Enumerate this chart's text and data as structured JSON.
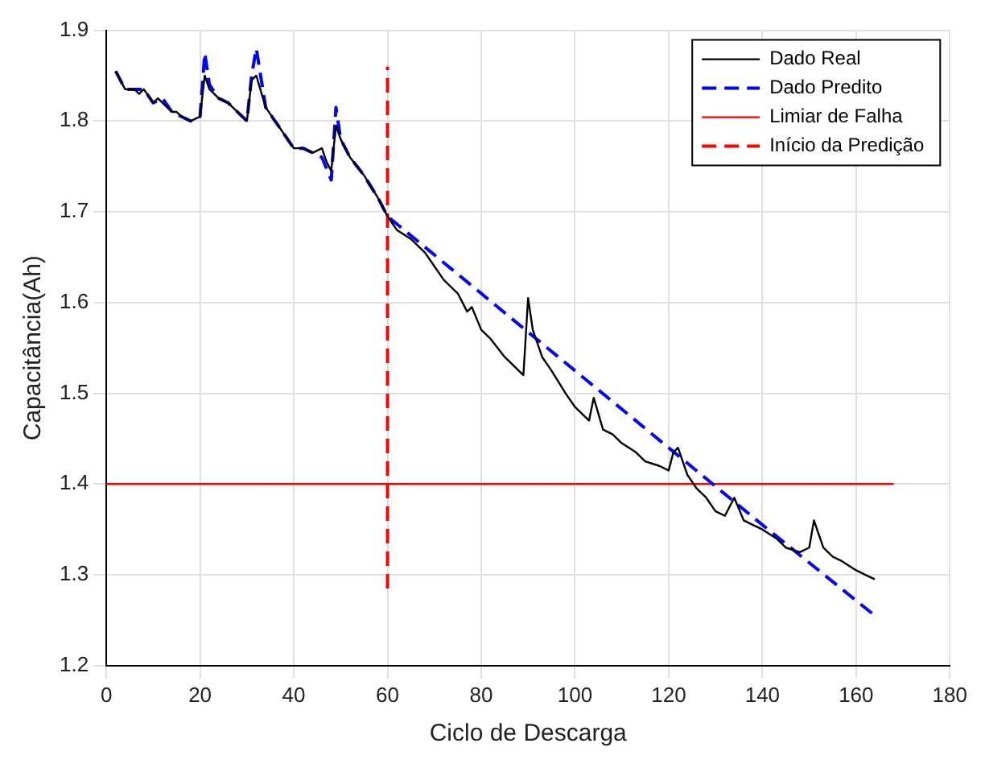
{
  "chart_data": {
    "type": "line",
    "xlabel": "Ciclo de Descarga",
    "ylabel": "Capacitância(Ah)",
    "xlim": [
      0,
      180
    ],
    "xticks": [
      0,
      20,
      40,
      60,
      80,
      100,
      120,
      140,
      160,
      180
    ],
    "ylim": [
      1.2,
      1.9
    ],
    "yticks": [
      1.2,
      1.3,
      1.4,
      1.5,
      1.6,
      1.7,
      1.8,
      1.9
    ],
    "grid": true,
    "legend": "top right",
    "series": [
      {
        "name": "Dado Real",
        "color": "#000000",
        "line_style": "solid",
        "x": [
          2,
          4,
          6,
          7,
          8,
          10,
          11,
          12,
          14,
          15,
          16,
          18,
          20,
          21,
          22,
          24,
          26,
          28,
          30,
          31,
          32,
          34,
          36,
          38,
          40,
          42,
          44,
          46,
          47,
          48,
          49,
          50,
          52,
          55,
          58,
          60,
          62,
          65,
          68,
          70,
          72,
          75,
          77,
          78,
          80,
          82,
          85,
          88,
          89,
          90,
          91,
          93,
          95,
          98,
          100,
          103,
          104,
          106,
          108,
          110,
          113,
          115,
          118,
          120,
          121,
          122,
          124,
          126,
          128,
          130,
          132,
          134,
          136,
          138,
          140,
          143,
          145,
          148,
          150,
          151,
          153,
          155,
          157,
          160,
          162,
          164
        ],
        "values": [
          1.855,
          1.835,
          1.835,
          1.83,
          1.835,
          1.82,
          1.825,
          1.82,
          1.81,
          1.81,
          1.805,
          1.8,
          1.805,
          1.85,
          1.835,
          1.825,
          1.82,
          1.81,
          1.8,
          1.845,
          1.85,
          1.815,
          1.8,
          1.785,
          1.77,
          1.77,
          1.765,
          1.77,
          1.755,
          1.745,
          1.795,
          1.78,
          1.76,
          1.74,
          1.715,
          1.695,
          1.68,
          1.67,
          1.655,
          1.64,
          1.625,
          1.61,
          1.59,
          1.595,
          1.57,
          1.56,
          1.54,
          1.525,
          1.52,
          1.605,
          1.57,
          1.54,
          1.525,
          1.5,
          1.485,
          1.47,
          1.495,
          1.46,
          1.455,
          1.445,
          1.435,
          1.425,
          1.42,
          1.415,
          1.435,
          1.44,
          1.41,
          1.395,
          1.385,
          1.37,
          1.365,
          1.385,
          1.36,
          1.355,
          1.35,
          1.34,
          1.33,
          1.325,
          1.33,
          1.36,
          1.33,
          1.32,
          1.315,
          1.305,
          1.3,
          1.295
        ]
      },
      {
        "name": "Dado Predito",
        "color": "#0000ff",
        "line_style": "dashed",
        "x": [
          2,
          4,
          6,
          8,
          10,
          12,
          14,
          16,
          18,
          20,
          21,
          22,
          24,
          26,
          28,
          30,
          31,
          32,
          34,
          36,
          38,
          40,
          42,
          44,
          46,
          48,
          49,
          50,
          52,
          55,
          58,
          60,
          80,
          100,
          120,
          140,
          164
        ],
        "values": [
          1.855,
          1.835,
          1.835,
          1.835,
          1.82,
          1.825,
          1.81,
          1.805,
          1.8,
          1.805,
          1.875,
          1.84,
          1.825,
          1.82,
          1.81,
          1.8,
          1.85,
          1.88,
          1.815,
          1.8,
          1.785,
          1.77,
          1.77,
          1.765,
          1.76,
          1.735,
          1.815,
          1.78,
          1.76,
          1.74,
          1.715,
          1.695,
          1.61,
          1.525,
          1.44,
          1.355,
          1.255
        ]
      },
      {
        "name": "Limiar de Falha",
        "color": "#ff0000",
        "line_style": "solid",
        "x": [
          0,
          168
        ],
        "values": [
          1.4,
          1.4
        ]
      },
      {
        "name": "Início da Predição",
        "color": "#ff0000",
        "line_style": "dashed",
        "x": [
          60,
          60
        ],
        "values": [
          1.285,
          1.86
        ]
      }
    ]
  }
}
